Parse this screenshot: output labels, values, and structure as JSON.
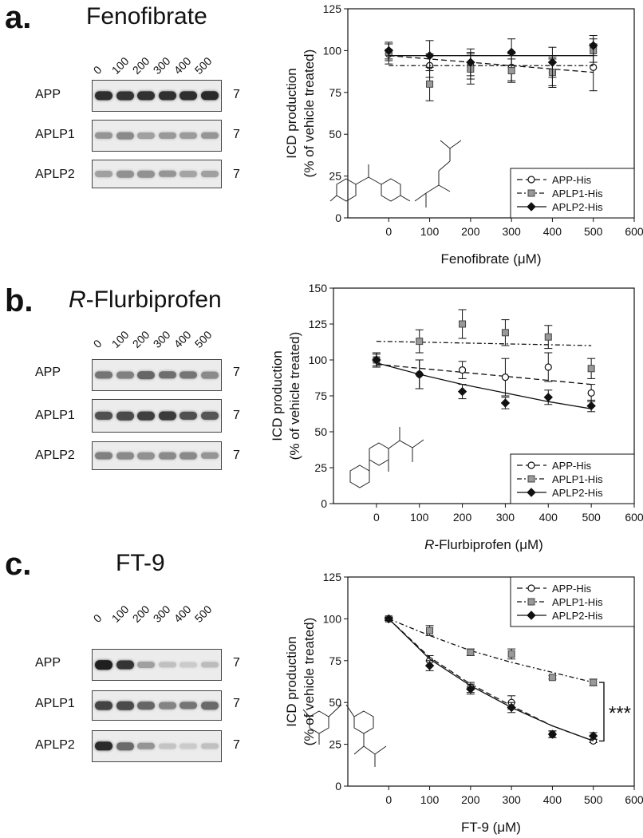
{
  "figure": {
    "panels": [
      {
        "letter": "a.",
        "title_italic": "",
        "title_rest": "Fenofibrate",
        "concentrations": [
          "0",
          "100",
          "200",
          "300",
          "400",
          "500"
        ],
        "blots": [
          {
            "label": "APP",
            "kda": "7",
            "intensity": [
              0.88,
              0.85,
              0.86,
              0.87,
              0.88,
              0.9
            ]
          },
          {
            "label": "APLP1",
            "kda": "7",
            "intensity": [
              0.4,
              0.45,
              0.35,
              0.38,
              0.37,
              0.4
            ]
          },
          {
            "label": "APLP2",
            "kda": "7",
            "intensity": [
              0.35,
              0.42,
              0.42,
              0.4,
              0.33,
              0.35
            ]
          }
        ]
      },
      {
        "letter": "b.",
        "title_italic": "R",
        "title_rest": "-Flurbiprofen",
        "concentrations": [
          "0",
          "100",
          "200",
          "300",
          "400",
          "500"
        ],
        "blots": [
          {
            "label": "APP",
            "kda": "7",
            "intensity": [
              0.55,
              0.5,
              0.62,
              0.58,
              0.55,
              0.45
            ]
          },
          {
            "label": "APLP1",
            "kda": "7",
            "intensity": [
              0.72,
              0.75,
              0.8,
              0.82,
              0.72,
              0.7
            ]
          },
          {
            "label": "APLP2",
            "kda": "7",
            "intensity": [
              0.5,
              0.45,
              0.42,
              0.45,
              0.45,
              0.4
            ]
          }
        ]
      },
      {
        "letter": "c.",
        "title_italic": "",
        "title_rest": "FT-9",
        "concentrations": [
          "0",
          "100",
          "200",
          "300",
          "400",
          "500"
        ],
        "blots": [
          {
            "label": "APP",
            "kda": "7",
            "intensity": [
              0.95,
              0.85,
              0.35,
              0.2,
              0.15,
              0.22
            ]
          },
          {
            "label": "APLP1",
            "kda": "7",
            "intensity": [
              0.78,
              0.75,
              0.62,
              0.48,
              0.55,
              0.6
            ]
          },
          {
            "label": "APLP2",
            "kda": "7",
            "intensity": [
              0.9,
              0.6,
              0.4,
              0.18,
              0.15,
              0.2
            ]
          }
        ]
      }
    ]
  },
  "chart_data": [
    {
      "type": "line",
      "title": "",
      "xlabel": "Fenofibrate (μM)",
      "xlabel_italic": "",
      "ylabel": [
        "ICD production",
        "(% of vehicle treated)"
      ],
      "xlim": [
        -100,
        600
      ],
      "ylim": [
        0,
        125
      ],
      "xticks": [
        0,
        100,
        200,
        300,
        400,
        500,
        600
      ],
      "yticks": [
        0,
        25,
        50,
        75,
        100,
        125
      ],
      "x": [
        0,
        100,
        200,
        300,
        400,
        500
      ],
      "legend_position": "bottom-right",
      "series": [
        {
          "name": "APP-His",
          "marker": "circle-open",
          "line": "dashed",
          "y": [
            98,
            91,
            91,
            90,
            87,
            90
          ],
          "err": [
            6,
            7,
            8,
            8,
            8,
            14
          ],
          "fit": [
            [
              0,
              97
            ],
            [
              500,
              87
            ]
          ]
        },
        {
          "name": "APLP1-His",
          "marker": "square-gray",
          "line": "dash-dot",
          "y": [
            99,
            80,
            89,
            88,
            87,
            100
          ],
          "err": [
            5,
            10,
            9,
            7,
            9,
            7
          ],
          "fit": [
            [
              0,
              91
            ],
            [
              500,
              91
            ]
          ]
        },
        {
          "name": "APLP2-His",
          "marker": "diamond-filled",
          "line": "solid",
          "y": [
            100,
            97,
            93,
            99,
            93,
            103
          ],
          "err": [
            5,
            9,
            8,
            8,
            9,
            6
          ],
          "fit": [
            [
              0,
              97
            ],
            [
              500,
              97
            ]
          ]
        }
      ],
      "annotation": ""
    },
    {
      "type": "line",
      "title": "",
      "xlabel": "-Flurbiprofen (μM)",
      "xlabel_italic": "R",
      "ylabel": [
        "ICD production",
        "(% of vehicle treated)"
      ],
      "xlim": [
        -100,
        600
      ],
      "ylim": [
        0,
        150
      ],
      "xticks": [
        0,
        100,
        200,
        300,
        400,
        500,
        600
      ],
      "yticks": [
        0,
        25,
        50,
        75,
        100,
        125,
        150
      ],
      "x": [
        0,
        100,
        200,
        300,
        400,
        500
      ],
      "legend_position": "bottom-right",
      "series": [
        {
          "name": "APP-His",
          "marker": "circle-open",
          "line": "dashed",
          "y": [
            100,
            90,
            93,
            88,
            95,
            77
          ],
          "err": [
            5,
            10,
            6,
            13,
            10,
            6
          ],
          "fit": [
            [
              0,
              97
            ],
            [
              500,
              83
            ]
          ]
        },
        {
          "name": "APLP1-His",
          "marker": "square-gray",
          "line": "dash-dot",
          "y": [
            100,
            113,
            125,
            119,
            116,
            94
          ],
          "err": [
            5,
            8,
            10,
            9,
            8,
            7
          ],
          "fit": [
            [
              0,
              113
            ],
            [
              500,
              110
            ]
          ]
        },
        {
          "name": "APLP2-His",
          "marker": "diamond-filled",
          "line": "solid",
          "y": [
            100,
            90,
            78,
            70,
            74,
            68
          ],
          "err": [
            4,
            10,
            5,
            4,
            5,
            4
          ],
          "fit": [
            [
              0,
              98
            ],
            [
              100,
              90
            ],
            [
              200,
              83
            ],
            [
              300,
              77
            ],
            [
              400,
              71
            ],
            [
              500,
              66
            ]
          ]
        }
      ],
      "annotation": ""
    },
    {
      "type": "line",
      "title": "",
      "xlabel": "FT-9 (μM)",
      "xlabel_italic": "",
      "ylabel": [
        "ICD production",
        "(% of vehicle treated)"
      ],
      "xlim": [
        -100,
        600
      ],
      "ylim": [
        0,
        125
      ],
      "xticks": [
        0,
        100,
        200,
        300,
        400,
        500,
        600
      ],
      "yticks": [
        0,
        25,
        50,
        75,
        100,
        125
      ],
      "x": [
        0,
        100,
        200,
        300,
        400,
        500
      ],
      "legend_position": "top-right",
      "series": [
        {
          "name": "APP-His",
          "marker": "circle-open",
          "line": "dashed",
          "y": [
            100,
            75,
            59,
            50,
            31,
            27
          ],
          "err": [
            1,
            3,
            3,
            4,
            2,
            1
          ],
          "fit": [
            [
              0,
              100
            ],
            [
              100,
              77
            ],
            [
              200,
              61
            ],
            [
              300,
              48
            ],
            [
              400,
              36
            ],
            [
              500,
              27
            ]
          ]
        },
        {
          "name": "APLP1-His",
          "marker": "square-gray",
          "line": "dash-dot",
          "y": [
            100,
            93,
            80,
            79,
            65,
            62
          ],
          "err": [
            1,
            3,
            2,
            3,
            1,
            2
          ],
          "fit": [
            [
              0,
              100
            ],
            [
              100,
              90
            ],
            [
              200,
              81
            ],
            [
              300,
              74
            ],
            [
              400,
              68
            ],
            [
              500,
              62
            ]
          ]
        },
        {
          "name": "APLP2-His",
          "marker": "diamond-filled",
          "line": "solid",
          "y": [
            100,
            72,
            58,
            47,
            31,
            30
          ],
          "err": [
            1,
            3,
            3,
            3,
            2,
            2
          ],
          "fit": [
            [
              0,
              100
            ],
            [
              100,
              76
            ],
            [
              200,
              60
            ],
            [
              300,
              47
            ],
            [
              400,
              36
            ],
            [
              500,
              27
            ]
          ]
        }
      ],
      "annotation": "***"
    }
  ]
}
